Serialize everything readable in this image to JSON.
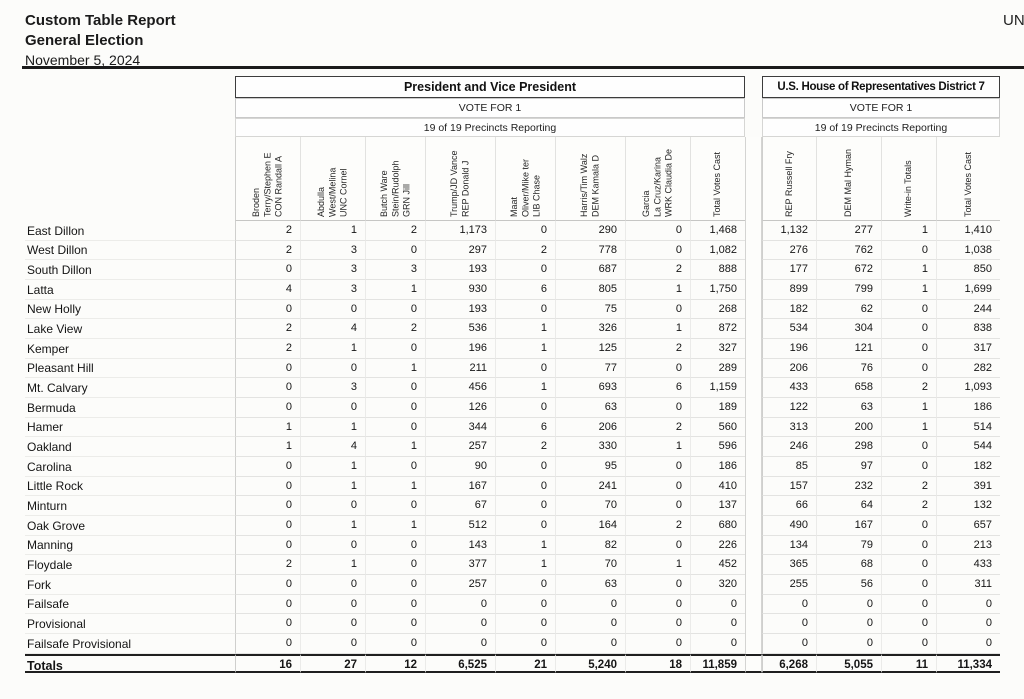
{
  "page": {
    "corner_text": "UNO"
  },
  "report_header": {
    "title": "Custom Table Report",
    "subtitle": "General Election",
    "date": "November 5, 2024"
  },
  "contests": [
    {
      "name": "President and Vice President",
      "vote_for": "VOTE FOR 1",
      "precincts": "19 of 19 Precincts Reporting",
      "columns": [
        "CON Randall A Terry/Stephen E Broden",
        "UNC Cornel West/Melina Abdulla",
        "GRN Jill Stein/Rudolph Butch Ware",
        "REP Donald J Trump/JD Vance",
        "LIB Chase Oliver/Mike ter Maat",
        "DEM Kamala D Harris/Tim Walz",
        "WRK Claudia De La Cruz/Karina Garcia",
        "Total Votes Cast"
      ]
    },
    {
      "name": "U.S. House of Representatives District 7",
      "vote_for": "VOTE FOR 1",
      "precincts": "19 of 19 Precincts Reporting",
      "columns": [
        "REP Russell Fry",
        "DEM Mal Hyman",
        "Write-in Totals",
        "Total Votes Cast"
      ]
    }
  ],
  "results_table": {
    "rows": [
      {
        "precinct": "East Dillon",
        "values": [
          "2",
          "1",
          "2",
          "1,173",
          "0",
          "290",
          "0",
          "1,468",
          "1,132",
          "277",
          "1",
          "1,410"
        ]
      },
      {
        "precinct": "West Dillon",
        "values": [
          "2",
          "3",
          "0",
          "297",
          "2",
          "778",
          "0",
          "1,082",
          "276",
          "762",
          "0",
          "1,038"
        ]
      },
      {
        "precinct": "South Dillon",
        "values": [
          "0",
          "3",
          "3",
          "193",
          "0",
          "687",
          "2",
          "888",
          "177",
          "672",
          "1",
          "850"
        ]
      },
      {
        "precinct": "Latta",
        "values": [
          "4",
          "3",
          "1",
          "930",
          "6",
          "805",
          "1",
          "1,750",
          "899",
          "799",
          "1",
          "1,699"
        ]
      },
      {
        "precinct": "New Holly",
        "values": [
          "0",
          "0",
          "0",
          "193",
          "0",
          "75",
          "0",
          "268",
          "182",
          "62",
          "0",
          "244"
        ]
      },
      {
        "precinct": "Lake View",
        "values": [
          "2",
          "4",
          "2",
          "536",
          "1",
          "326",
          "1",
          "872",
          "534",
          "304",
          "0",
          "838"
        ]
      },
      {
        "precinct": "Kemper",
        "values": [
          "2",
          "1",
          "0",
          "196",
          "1",
          "125",
          "2",
          "327",
          "196",
          "121",
          "0",
          "317"
        ]
      },
      {
        "precinct": "Pleasant Hill",
        "values": [
          "0",
          "0",
          "1",
          "211",
          "0",
          "77",
          "0",
          "289",
          "206",
          "76",
          "0",
          "282"
        ]
      },
      {
        "precinct": "Mt. Calvary",
        "values": [
          "0",
          "3",
          "0",
          "456",
          "1",
          "693",
          "6",
          "1,159",
          "433",
          "658",
          "2",
          "1,093"
        ]
      },
      {
        "precinct": "Bermuda",
        "values": [
          "0",
          "0",
          "0",
          "126",
          "0",
          "63",
          "0",
          "189",
          "122",
          "63",
          "1",
          "186"
        ]
      },
      {
        "precinct": "Hamer",
        "values": [
          "1",
          "1",
          "0",
          "344",
          "6",
          "206",
          "2",
          "560",
          "313",
          "200",
          "1",
          "514"
        ]
      },
      {
        "precinct": "Oakland",
        "values": [
          "1",
          "4",
          "1",
          "257",
          "2",
          "330",
          "1",
          "596",
          "246",
          "298",
          "0",
          "544"
        ]
      },
      {
        "precinct": "Carolina",
        "values": [
          "0",
          "1",
          "0",
          "90",
          "0",
          "95",
          "0",
          "186",
          "85",
          "97",
          "0",
          "182"
        ]
      },
      {
        "precinct": "Little Rock",
        "values": [
          "0",
          "1",
          "1",
          "167",
          "0",
          "241",
          "0",
          "410",
          "157",
          "232",
          "2",
          "391"
        ]
      },
      {
        "precinct": "Minturn",
        "values": [
          "0",
          "0",
          "0",
          "67",
          "0",
          "70",
          "0",
          "137",
          "66",
          "64",
          "2",
          "132"
        ]
      },
      {
        "precinct": "Oak Grove",
        "values": [
          "0",
          "1",
          "1",
          "512",
          "0",
          "164",
          "2",
          "680",
          "490",
          "167",
          "0",
          "657"
        ]
      },
      {
        "precinct": "Manning",
        "values": [
          "0",
          "0",
          "0",
          "143",
          "1",
          "82",
          "0",
          "226",
          "134",
          "79",
          "0",
          "213"
        ]
      },
      {
        "precinct": "Floydale",
        "values": [
          "2",
          "1",
          "0",
          "377",
          "1",
          "70",
          "1",
          "452",
          "365",
          "68",
          "0",
          "433"
        ]
      },
      {
        "precinct": "Fork",
        "values": [
          "0",
          "0",
          "0",
          "257",
          "0",
          "63",
          "0",
          "320",
          "255",
          "56",
          "0",
          "311"
        ]
      },
      {
        "precinct": "Failsafe",
        "values": [
          "0",
          "0",
          "0",
          "0",
          "0",
          "0",
          "0",
          "0",
          "0",
          "0",
          "0",
          "0"
        ]
      },
      {
        "precinct": "Provisional",
        "values": [
          "0",
          "0",
          "0",
          "0",
          "0",
          "0",
          "0",
          "0",
          "0",
          "0",
          "0",
          "0"
        ]
      },
      {
        "precinct": "Failsafe Provisional",
        "values": [
          "0",
          "0",
          "0",
          "0",
          "0",
          "0",
          "0",
          "0",
          "0",
          "0",
          "0",
          "0"
        ]
      }
    ],
    "totals": {
      "label": "Totals",
      "values": [
        "16",
        "27",
        "12",
        "6,525",
        "21",
        "5,240",
        "18",
        "11,859",
        "6,268",
        "5,055",
        "11",
        "11,334"
      ]
    }
  }
}
